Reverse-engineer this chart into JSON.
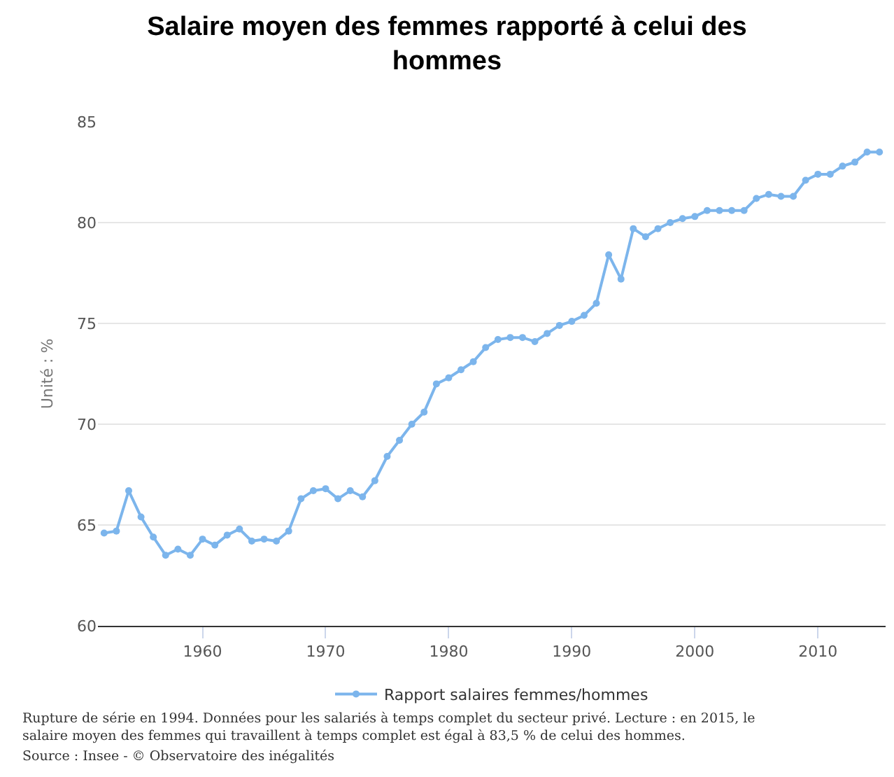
{
  "chart_data": {
    "type": "line",
    "title": "Salaire moyen des femmes rapporté à celui des hommes",
    "ylabel": "Unité : %",
    "x": [
      1952,
      1953,
      1954,
      1955,
      1956,
      1957,
      1958,
      1959,
      1960,
      1961,
      1962,
      1963,
      1964,
      1965,
      1966,
      1967,
      1968,
      1969,
      1970,
      1971,
      1972,
      1973,
      1974,
      1975,
      1976,
      1977,
      1978,
      1979,
      1980,
      1981,
      1982,
      1983,
      1984,
      1985,
      1986,
      1987,
      1988,
      1989,
      1990,
      1991,
      1992,
      1993,
      1994,
      1995,
      1996,
      1997,
      1998,
      1999,
      2000,
      2001,
      2002,
      2003,
      2004,
      2005,
      2006,
      2007,
      2008,
      2009,
      2010,
      2011,
      2012,
      2013,
      2014,
      2015
    ],
    "series": [
      {
        "name": "Rapport salaires femmes/hommes",
        "color": "#7cb5ec",
        "values": [
          64.6,
          64.7,
          66.7,
          65.4,
          64.4,
          63.5,
          63.8,
          63.5,
          64.3,
          64.0,
          64.5,
          64.8,
          64.2,
          64.3,
          64.2,
          64.7,
          66.3,
          66.7,
          66.8,
          66.3,
          66.7,
          66.4,
          67.2,
          68.4,
          69.2,
          70.0,
          70.6,
          72.0,
          72.3,
          72.7,
          73.1,
          73.8,
          74.2,
          74.3,
          74.3,
          74.1,
          74.5,
          74.9,
          75.1,
          75.4,
          76.0,
          78.4,
          77.2,
          79.7,
          79.3,
          79.7,
          80.0,
          80.2,
          80.3,
          80.6,
          80.6,
          80.6,
          80.6,
          81.2,
          81.4,
          81.3,
          81.3,
          82.1,
          82.4,
          82.4,
          82.8,
          83.0,
          83.5,
          83.5
        ]
      }
    ],
    "xlim": [
      1951.5,
      2015.5
    ],
    "xticks": [
      1960,
      1970,
      1980,
      1990,
      2000,
      2010
    ],
    "ylim": [
      60,
      85
    ],
    "yticks": [
      60,
      65,
      70,
      75,
      80,
      85
    ],
    "grid": "y",
    "legend": "bottom",
    "marker": "circle",
    "line_style": "solid",
    "annotations": [
      "Rupture de série en 1994. Données pour les salariés à temps complet du secteur privé. Lecture : en 2015, le salaire moyen des femmes qui travaillent à temps complet est égal à 83,5 % de celui des hommes.",
      "Source : Insee - © Observatoire des inégalités"
    ]
  }
}
